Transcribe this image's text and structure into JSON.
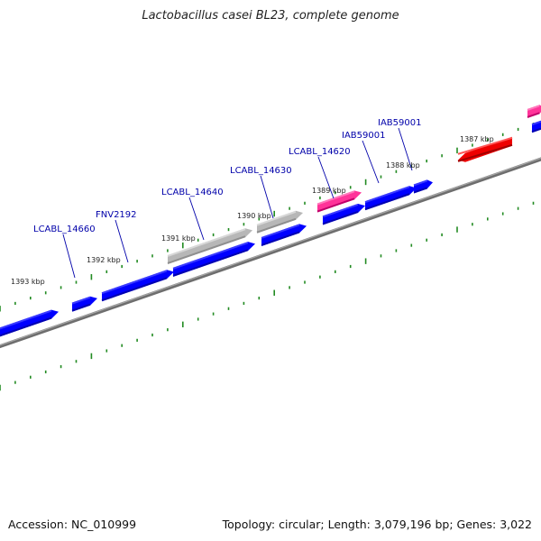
{
  "header": {
    "title": "Lactobacillus casei BL23, complete genome"
  },
  "footer": {
    "accession": "Accession: NC_010999",
    "summary": "Topology: circular; Length: 3,079,196 bp; Genes: 3,022"
  },
  "colors": {
    "backbone": "#7f7f7f",
    "tick": "#228b22",
    "cds": "#0000ee",
    "pseudo": "#a9a9a9",
    "rna": "#ff1493",
    "highlight": "#ee0000",
    "label_text": "#0000aa",
    "kbp_text": "#222222"
  },
  "scale_labels": [
    "1393 kbp",
    "1392 kbp",
    "1391 kbp",
    "1390 kbp",
    "1389 kbp",
    "1388 kbp",
    "1387 kbp"
  ],
  "gene_labels": [
    "LCABL_14660",
    "FNV2192",
    "LCABL_14640",
    "LCABL_14630",
    "LCABL_14620",
    "IAB59001",
    "IAB59001"
  ],
  "features": [
    {
      "kind": "cds",
      "strand": "+"
    },
    {
      "kind": "cds",
      "strand": "+"
    },
    {
      "kind": "cds",
      "strand": "+"
    },
    {
      "kind": "cds",
      "strand": "+"
    },
    {
      "kind": "pseudo",
      "strand": "+"
    },
    {
      "kind": "cds",
      "strand": "+"
    },
    {
      "kind": "pseudo",
      "strand": "+"
    },
    {
      "kind": "cds",
      "strand": "+"
    },
    {
      "kind": "rna",
      "strand": "+"
    },
    {
      "kind": "cds",
      "strand": "+"
    },
    {
      "kind": "cds",
      "strand": "+"
    },
    {
      "kind": "highlight",
      "strand": "-"
    },
    {
      "kind": "rna",
      "strand": "+"
    },
    {
      "kind": "cds",
      "strand": "+"
    }
  ]
}
